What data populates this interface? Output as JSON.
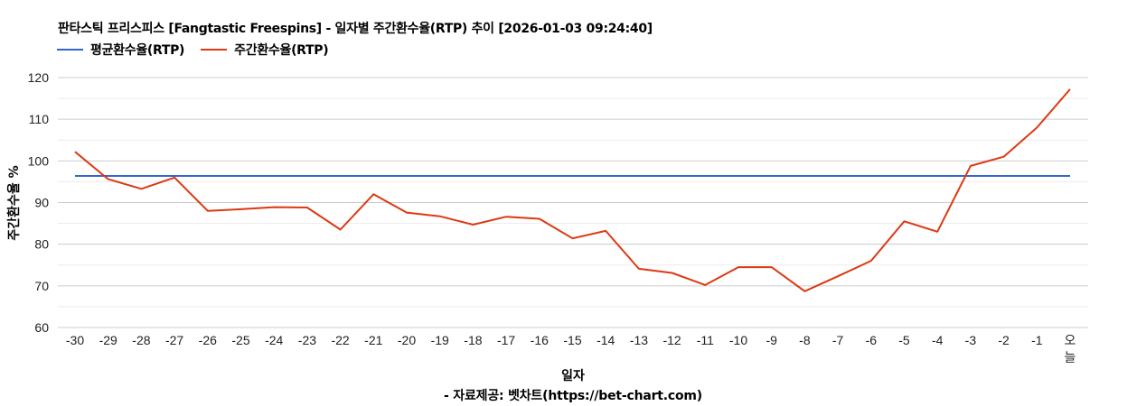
{
  "header": {
    "title": "판타스틱 프리스피스 [Fangtastic Freespins] - 일자별 주간환수율(RTP) 추이 [2026-01-03 09:24:40]"
  },
  "legend": {
    "items": [
      {
        "label": "평균환수율(RTP)",
        "color": "#3366cc"
      },
      {
        "label": "주간환수율(RTP)",
        "color": "#dc3912"
      }
    ]
  },
  "footer": {
    "x_title": "일자",
    "credit": "- 자료제공: 벳차트(https://bet-chart.com)"
  },
  "chart_data": {
    "type": "line",
    "title": "판타스틱 프리스피스 [Fangtastic Freespins] - 일자별 주간환수율(RTP) 추이 [2026-01-03 09:24:40]",
    "xlabel": "일자",
    "ylabel": "주간환수율 %",
    "ylim": [
      60,
      120
    ],
    "yticks": [
      60,
      70,
      80,
      90,
      100,
      110,
      120
    ],
    "grid": true,
    "legend_position": "top",
    "categories": [
      "-30",
      "-29",
      "-28",
      "-27",
      "-26",
      "-25",
      "-24",
      "-23",
      "-22",
      "-21",
      "-20",
      "-19",
      "-18",
      "-17",
      "-16",
      "-15",
      "-14",
      "-13",
      "-12",
      "-11",
      "-10",
      "-9",
      "-8",
      "-7",
      "-6",
      "-5",
      "-4",
      "-3",
      "-2",
      "-1",
      "오늘"
    ],
    "series": [
      {
        "name": "평균환수율(RTP)",
        "color": "#3366cc",
        "values": [
          96.4,
          96.4,
          96.4,
          96.4,
          96.4,
          96.4,
          96.4,
          96.4,
          96.4,
          96.4,
          96.4,
          96.4,
          96.4,
          96.4,
          96.4,
          96.4,
          96.4,
          96.4,
          96.4,
          96.4,
          96.4,
          96.4,
          96.4,
          96.4,
          96.4,
          96.4,
          96.4,
          96.4,
          96.4,
          96.4,
          96.4
        ]
      },
      {
        "name": "주간환수율(RTP)",
        "color": "#dc3912",
        "values": [
          102.2,
          95.6,
          93.3,
          96.0,
          88.0,
          88.4,
          88.9,
          88.8,
          83.5,
          92.0,
          87.6,
          86.7,
          84.7,
          86.6,
          86.1,
          81.4,
          83.2,
          74.1,
          73.1,
          70.2,
          74.5,
          74.5,
          68.7,
          72.3,
          76.0,
          85.5,
          83.0,
          98.8,
          101.0,
          108.0,
          117.2
        ]
      }
    ]
  }
}
